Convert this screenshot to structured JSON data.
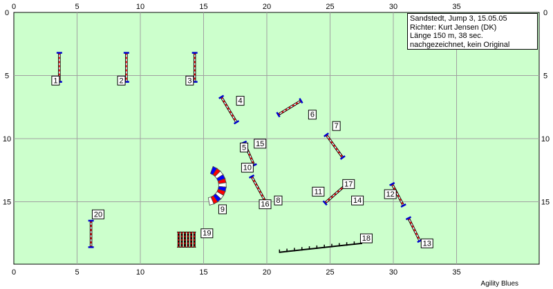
{
  "course": {
    "colors": {
      "field": "#ccffcc",
      "grid": "#a0a0a0",
      "pole_red": "#ff0000",
      "pole_white": "#ffffff",
      "stand": "#0000cc",
      "tunnel_red": "#ff0000",
      "tunnel_blue": "#0000ff"
    },
    "axis": {
      "x_range": [
        0,
        40
      ],
      "y_range": [
        0,
        20
      ],
      "x_ticks": [
        0,
        5,
        10,
        15,
        20,
        25,
        30,
        35
      ],
      "y_ticks": [
        0,
        5,
        10,
        15
      ]
    }
  },
  "info": {
    "lines": [
      "Sandstedt, Jump 3, 15.05.05",
      "Richter: Kurt Jensen (DK)",
      "Länge 150 m, 38 sec.",
      "nachgezeichnet, kein Original"
    ]
  },
  "obstacles": [
    {
      "type": "jump",
      "x1": 3.6,
      "y1": 3.2,
      "x2": 3.6,
      "y2": 5.5
    },
    {
      "type": "jump",
      "x1": 8.9,
      "y1": 3.2,
      "x2": 8.9,
      "y2": 5.5
    },
    {
      "type": "jump",
      "x1": 14.3,
      "y1": 3.2,
      "x2": 14.3,
      "y2": 5.5
    },
    {
      "type": "jump",
      "x1": 16.4,
      "y1": 6.7,
      "x2": 17.6,
      "y2": 8.7
    },
    {
      "type": "jump",
      "x1": 20.9,
      "y1": 8.1,
      "x2": 22.7,
      "y2": 7.0
    },
    {
      "type": "jump",
      "x1": 24.7,
      "y1": 9.7,
      "x2": 26.0,
      "y2": 11.5
    },
    {
      "type": "jump",
      "x1": 18.2,
      "y1": 10.3,
      "x2": 19.0,
      "y2": 12.1
    },
    {
      "type": "jump",
      "x1": 18.8,
      "y1": 13.0,
      "x2": 19.9,
      "y2": 15.0
    },
    {
      "type": "jump",
      "x1": 24.6,
      "y1": 15.1,
      "x2": 26.2,
      "y2": 13.7
    },
    {
      "type": "jump",
      "x1": 29.9,
      "y1": 13.6,
      "x2": 30.8,
      "y2": 15.3
    },
    {
      "type": "jump",
      "x1": 31.2,
      "y1": 16.3,
      "x2": 32.1,
      "y2": 18.1
    },
    {
      "type": "jump",
      "x1": 6.1,
      "y1": 16.5,
      "x2": 6.1,
      "y2": 18.6
    },
    {
      "type": "wall",
      "x1": 21.0,
      "y1": 19.0,
      "x2": 27.5,
      "y2": 18.3
    },
    {
      "type": "weaves",
      "x1": 12.9,
      "y1": 17.4,
      "x2": 14.4,
      "y2": 17.4,
      "height": 1.2
    },
    {
      "type": "tunnel",
      "cx": 15.2,
      "cy": 13.7,
      "r": 1.3,
      "thickness": 0.6
    }
  ],
  "labels": [
    {
      "n": "1",
      "x": 3.0,
      "y": 5.7
    },
    {
      "n": "2",
      "x": 8.2,
      "y": 5.7
    },
    {
      "n": "3",
      "x": 13.6,
      "y": 5.7
    },
    {
      "n": "4",
      "x": 17.6,
      "y": 7.3
    },
    {
      "n": "6",
      "x": 23.3,
      "y": 8.4
    },
    {
      "n": "7",
      "x": 25.2,
      "y": 9.3
    },
    {
      "n": "5",
      "x": 17.9,
      "y": 11.0
    },
    {
      "n": "15",
      "x": 19.0,
      "y": 10.7
    },
    {
      "n": "10",
      "x": 18.0,
      "y": 12.6
    },
    {
      "n": "17",
      "x": 26.0,
      "y": 13.9
    },
    {
      "n": "11",
      "x": 23.6,
      "y": 14.5
    },
    {
      "n": "14",
      "x": 26.7,
      "y": 15.2
    },
    {
      "n": "12",
      "x": 29.3,
      "y": 14.7
    },
    {
      "n": "8",
      "x": 20.6,
      "y": 15.2
    },
    {
      "n": "16",
      "x": 19.4,
      "y": 15.5
    },
    {
      "n": "9",
      "x": 16.2,
      "y": 15.9
    },
    {
      "n": "13",
      "x": 32.2,
      "y": 18.6
    },
    {
      "n": "19",
      "x": 14.8,
      "y": 17.8
    },
    {
      "n": "20",
      "x": 6.2,
      "y": 16.3
    },
    {
      "n": "18",
      "x": 27.4,
      "y": 18.2
    }
  ],
  "footer": {
    "text": "Agility Blues"
  }
}
